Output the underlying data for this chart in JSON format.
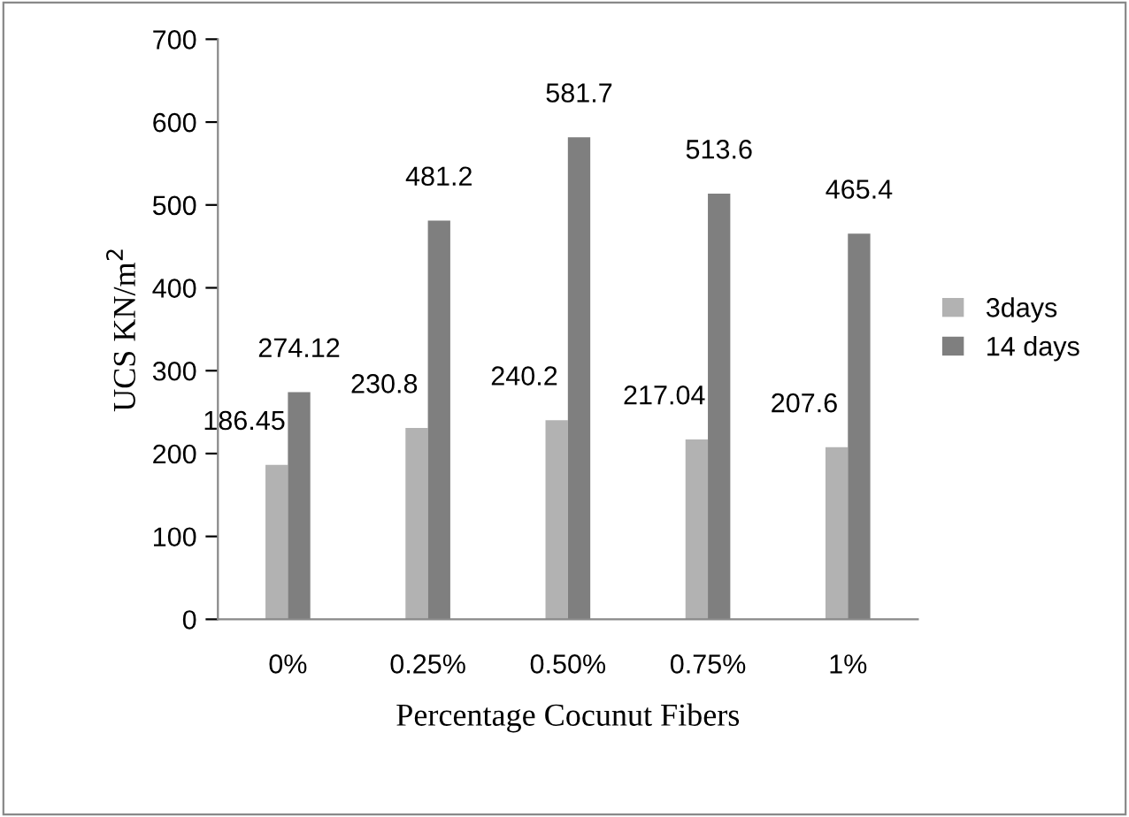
{
  "chart_data": {
    "type": "bar",
    "xlabel": "Percentage Cocunut Fibers",
    "ylabel": "UCS KN/m$^{2}$",
    "categories": [
      "0%",
      "0.25%",
      "0.50%",
      "0.75%",
      "1%"
    ],
    "series": [
      {
        "name": "3days",
        "color": "#b2b2b2",
        "values": [
          186.45,
          230.8,
          240.2,
          217.04,
          207.6
        ]
      },
      {
        "name": "14 days",
        "color": "#7f7f7f",
        "values": [
          274.12,
          481.2,
          581.7,
          513.6,
          465.4
        ]
      }
    ],
    "ylim": [
      0,
      700
    ],
    "yticks": [
      0,
      100,
      200,
      300,
      400,
      500,
      600,
      700
    ],
    "data_labels": true,
    "grid": false,
    "legend": "right"
  }
}
